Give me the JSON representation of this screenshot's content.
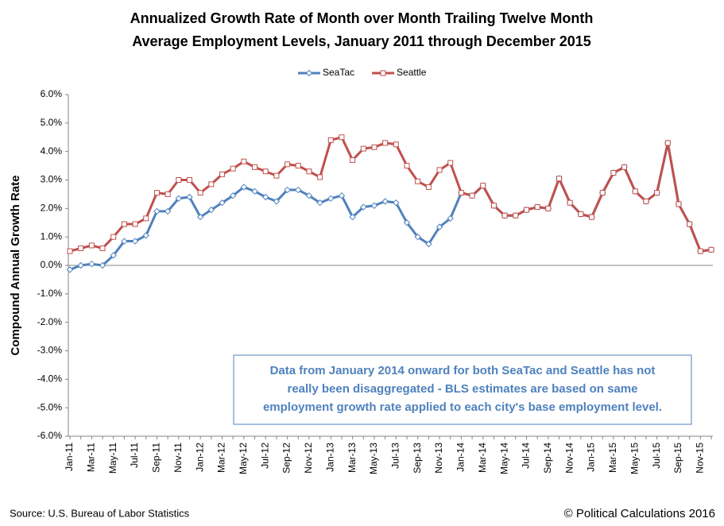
{
  "chart_data": {
    "type": "line",
    "title": [
      "Annualized Growth Rate of Month over Month Trailing Twelve Month",
      "Average Employment Levels, January 2011 through December 2015"
    ],
    "y_label": "Compound Annual Growth Rate",
    "categories": [
      "Jan-11",
      null,
      "Mar-11",
      null,
      "May-11",
      null,
      "Jul-11",
      null,
      "Sep-11",
      null,
      "Nov-11",
      null,
      "Jan-12",
      null,
      "Mar-12",
      null,
      "May-12",
      null,
      "Jul-12",
      null,
      "Sep-12",
      null,
      "Nov-12",
      null,
      "Jan-13",
      null,
      "Mar-13",
      null,
      "May-13",
      null,
      "Jul-13",
      null,
      "Sep-13",
      null,
      "Nov-13",
      null,
      "Jan-14",
      null,
      "Mar-14",
      null,
      "May-14",
      null,
      "Jul-14",
      null,
      "Sep-14",
      null,
      "Nov-14",
      null,
      "Jan-15",
      null,
      "Mar-15",
      null,
      "May-15",
      null,
      "Jul-15",
      null,
      "Sep-15",
      null,
      "Nov-15",
      null
    ],
    "series": [
      {
        "name": "SeaTac",
        "color": "#4f81bd",
        "marker": "diamond",
        "values": [
          -0.15,
          0.0,
          0.05,
          0.0,
          0.35,
          0.85,
          0.85,
          1.05,
          1.9,
          1.9,
          2.35,
          2.4,
          1.7,
          1.95,
          2.2,
          2.45,
          2.75,
          2.6,
          2.4,
          2.25,
          2.65,
          2.65,
          2.45,
          2.2,
          2.35,
          2.45,
          1.7,
          2.05,
          2.1,
          2.25,
          2.2,
          1.5,
          1.0,
          0.75,
          1.35,
          1.65,
          2.55,
          2.45,
          2.8,
          2.1,
          1.75,
          1.75,
          1.95,
          2.05,
          2.0,
          3.05,
          2.2,
          1.8,
          1.7,
          2.55,
          3.25,
          3.45,
          2.6,
          2.25,
          2.55,
          4.3,
          2.15,
          1.45,
          0.5,
          0.55
        ]
      },
      {
        "name": "Seattle",
        "color": "#c0504d",
        "marker": "square",
        "values": [
          0.5,
          0.6,
          0.7,
          0.6,
          1.0,
          1.45,
          1.45,
          1.65,
          2.55,
          2.5,
          3.0,
          3.0,
          2.55,
          2.85,
          3.2,
          3.4,
          3.65,
          3.45,
          3.3,
          3.15,
          3.55,
          3.5,
          3.3,
          3.1,
          4.4,
          4.5,
          3.7,
          4.1,
          4.15,
          4.3,
          4.25,
          3.5,
          2.95,
          2.75,
          3.35,
          3.6,
          2.55,
          2.45,
          2.8,
          2.1,
          1.75,
          1.75,
          1.95,
          2.05,
          2.0,
          3.05,
          2.2,
          1.8,
          1.7,
          2.55,
          3.25,
          3.45,
          2.6,
          2.25,
          2.55,
          4.3,
          2.15,
          1.45,
          0.5,
          0.55
        ]
      }
    ],
    "ylim": [
      -6,
      6
    ],
    "yticks": [
      {
        "value": -6,
        "label": "-6.0%"
      },
      {
        "value": -5,
        "label": "-5.0%"
      },
      {
        "value": -4,
        "label": "-4.0%"
      },
      {
        "value": -3,
        "label": "-3.0%"
      },
      {
        "value": -2,
        "label": "-2.0%"
      },
      {
        "value": -1,
        "label": "-1.0%"
      },
      {
        "value": 0,
        "label": "0.0%"
      },
      {
        "value": 1,
        "label": "1.0%"
      },
      {
        "value": 2,
        "label": "2.0%"
      },
      {
        "value": 3,
        "label": "3.0%"
      },
      {
        "value": 4,
        "label": "4.0%"
      },
      {
        "value": 5,
        "label": "5.0%"
      },
      {
        "value": 6,
        "label": "6.0%"
      }
    ],
    "grid": false,
    "legend": "top",
    "annotation": [
      "Data from January 2014 onward for both SeaTac and Seattle has not",
      "really been disaggregated - BLS estimates are based on same",
      "employment growth rate applied to each city's base employment level."
    ],
    "source": "Source: U.S. Bureau of Labor Statistics",
    "credit": "© Political Calculations 2016"
  }
}
